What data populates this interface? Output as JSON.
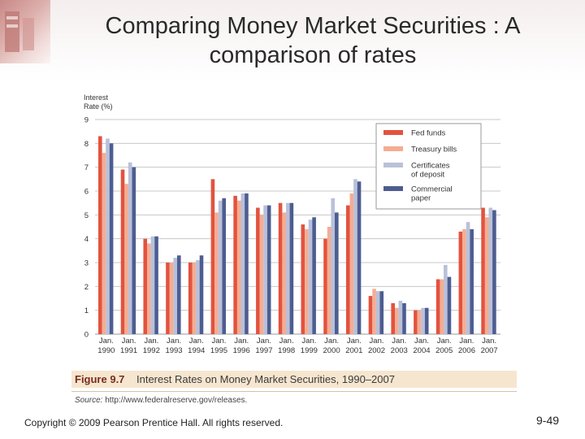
{
  "slide": {
    "title": "Comparing Money Market Securities : A\ncomparison of rates",
    "copyright": "Copyright © 2009 Pearson Prentice Hall. All rights reserved.",
    "page_number": "9-49"
  },
  "figure": {
    "label": "Figure 9.7",
    "caption": "Interest Rates on Money Market Securities, 1990–2007",
    "source_prefix": "Source:",
    "source_url": "http://www.federalreserve.gov/releases."
  },
  "chart_data": {
    "type": "bar",
    "ylabel": "Interest\nRate (%)",
    "ylim": [
      0,
      9
    ],
    "yticks": [
      0,
      1,
      2,
      3,
      4,
      5,
      6,
      7,
      8,
      9
    ],
    "grid": true,
    "legend_position": "top-right",
    "categories": [
      [
        "Jan.",
        "1990"
      ],
      [
        "Jan.",
        "1991"
      ],
      [
        "Jan.",
        "1992"
      ],
      [
        "Jan.",
        "1993"
      ],
      [
        "Jan.",
        "1994"
      ],
      [
        "Jan.",
        "1995"
      ],
      [
        "Jan.",
        "1996"
      ],
      [
        "Jan.",
        "1997"
      ],
      [
        "Jan.",
        "1998"
      ],
      [
        "Jan.",
        "1999"
      ],
      [
        "Jan.",
        "2000"
      ],
      [
        "Jan.",
        "2001"
      ],
      [
        "Jan.",
        "2002"
      ],
      [
        "Jan.",
        "2003"
      ],
      [
        "Jan.",
        "2004"
      ],
      [
        "Jan.",
        "2005"
      ],
      [
        "Jan.",
        "2006"
      ],
      [
        "Jan.",
        "2007"
      ]
    ],
    "series": [
      {
        "name": "Fed funds",
        "color": "#e2533f",
        "values": [
          8.3,
          6.9,
          4.0,
          3.0,
          3.0,
          6.5,
          5.8,
          5.3,
          5.5,
          4.6,
          4.0,
          5.4,
          1.6,
          1.3,
          1.0,
          2.3,
          4.3,
          5.3
        ]
      },
      {
        "name": "Treasury bills",
        "color": "#f4ad92",
        "values": [
          7.6,
          6.3,
          3.8,
          3.0,
          3.0,
          5.1,
          5.6,
          5.0,
          5.1,
          4.4,
          4.5,
          5.9,
          1.9,
          1.1,
          1.0,
          2.3,
          4.4,
          4.9
        ]
      },
      {
        "name": "Certificates\nof deposit",
        "color": "#b9c0d9",
        "values": [
          8.2,
          7.2,
          4.1,
          3.2,
          3.1,
          5.6,
          5.9,
          5.4,
          5.5,
          4.8,
          5.7,
          6.5,
          1.8,
          1.4,
          1.1,
          2.9,
          4.7,
          5.3
        ]
      },
      {
        "name": "Commercial\npaper",
        "color": "#4d5d91",
        "values": [
          8.0,
          7.0,
          4.1,
          3.3,
          3.3,
          5.7,
          5.9,
          5.4,
          5.5,
          4.9,
          5.1,
          6.4,
          1.8,
          1.3,
          1.1,
          2.4,
          4.4,
          5.2
        ]
      }
    ]
  }
}
